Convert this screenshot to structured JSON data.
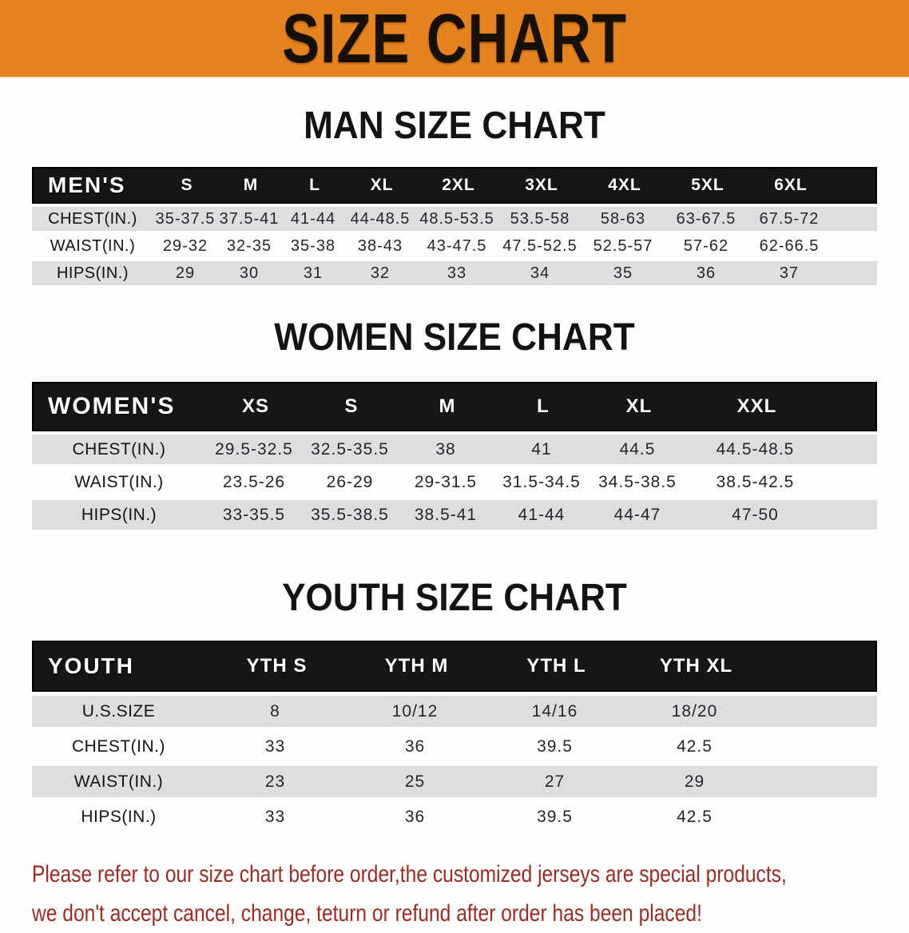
{
  "banner": {
    "title": "SIZE CHART"
  },
  "sections": [
    {
      "heading": "MAN SIZE CHART",
      "header_label": "MEN'S",
      "columns": [
        "S",
        "M",
        "L",
        "XL",
        "2XL",
        "3XL",
        "4XL",
        "5XL",
        "6XL"
      ],
      "rows": [
        {
          "label": "CHEST(IN.)",
          "values": [
            "35-37.5",
            "37.5-41",
            "41-44",
            "44-48.5",
            "48.5-53.5",
            "53.5-58",
            "58-63",
            "63-67.5",
            "67.5-72"
          ]
        },
        {
          "label": "WAIST(IN.)",
          "values": [
            "29-32",
            "32-35",
            "35-38",
            "38-43",
            "43-47.5",
            "47.5-52.5",
            "52.5-57",
            "57-62",
            "62-66.5"
          ]
        },
        {
          "label": "HIPS(IN.)",
          "values": [
            "29",
            "30",
            "31",
            "32",
            "33",
            "34",
            "35",
            "36",
            "37"
          ]
        }
      ]
    },
    {
      "heading": "WOMEN SIZE CHART",
      "header_label": "WOMEN'S",
      "columns": [
        "XS",
        "S",
        "M",
        "L",
        "XL",
        "XXL"
      ],
      "rows": [
        {
          "label": "CHEST(IN.)",
          "values": [
            "29.5-32.5",
            "32.5-35.5",
            "38",
            "41",
            "44.5",
            "44.5-48.5"
          ]
        },
        {
          "label": "WAIST(IN.)",
          "values": [
            "23.5-26",
            "26-29",
            "29-31.5",
            "31.5-34.5",
            "34.5-38.5",
            "38.5-42.5"
          ]
        },
        {
          "label": "HIPS(IN.)",
          "values": [
            "33-35.5",
            "35.5-38.5",
            "38.5-41",
            "41-44",
            "44-47",
            "47-50"
          ]
        }
      ]
    },
    {
      "heading": "YOUTH SIZE CHART",
      "header_label": "YOUTH",
      "columns": [
        "YTH S",
        "YTH M",
        "YTH L",
        "YTH XL"
      ],
      "rows": [
        {
          "label": "U.S.SIZE",
          "values": [
            "8",
            "10/12",
            "14/16",
            "18/20"
          ]
        },
        {
          "label": "CHEST(IN.)",
          "values": [
            "33",
            "36",
            "39.5",
            "42.5"
          ]
        },
        {
          "label": "WAIST(IN.)",
          "values": [
            "23",
            "25",
            "27",
            "29"
          ]
        },
        {
          "label": "HIPS(IN.)",
          "values": [
            "33",
            "36",
            "39.5",
            "42.5"
          ]
        }
      ]
    }
  ],
  "disclaimer": {
    "lines": [
      "Please refer to our size chart before order,the customized jerseys are special products,",
      "we don't accept cancel, change, teturn or refund after order has been placed!"
    ]
  },
  "colors": {
    "banner_bg": "#E7831E",
    "table_header_bg": "#161616",
    "shaded_row_bg": "#DCDEDF",
    "disclaimer_text": "#9D2B23"
  }
}
